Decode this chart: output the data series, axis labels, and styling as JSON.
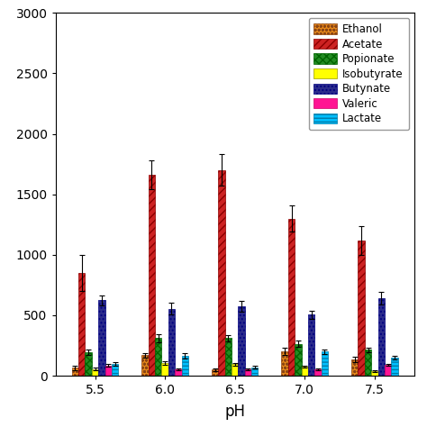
{
  "ph_labels": [
    "5.5",
    "6.0",
    "6.5",
    "7.0",
    "7.5"
  ],
  "series": [
    {
      "name": "Ethanol",
      "values": [
        65,
        170,
        50,
        205,
        135
      ],
      "errors": [
        20,
        20,
        10,
        30,
        20
      ],
      "color": "#E8891A",
      "hatch": "oooo",
      "edgecolor": "#8B4513"
    },
    {
      "name": "Acetate",
      "values": [
        850,
        1660,
        1700,
        1300,
        1120
      ],
      "errors": [
        150,
        120,
        130,
        110,
        120
      ],
      "color": "#CC2222",
      "hatch": "////",
      "edgecolor": "#8B0000"
    },
    {
      "name": "Popionate",
      "values": [
        195,
        310,
        310,
        265,
        215
      ],
      "errors": [
        25,
        30,
        25,
        25,
        20
      ],
      "color": "#228B22",
      "hatch": "xxxx",
      "edgecolor": "#006400"
    },
    {
      "name": "Isobutyrate",
      "values": [
        55,
        105,
        95,
        75,
        40
      ],
      "errors": [
        10,
        15,
        12,
        10,
        8
      ],
      "color": "#FFFF00",
      "hatch": "",
      "edgecolor": "#999900"
    },
    {
      "name": "Butynate",
      "values": [
        625,
        555,
        575,
        505,
        640
      ],
      "errors": [
        40,
        50,
        45,
        35,
        50
      ],
      "color": "#2B2B8B",
      "hatch": "....",
      "edgecolor": "#000080"
    },
    {
      "name": "Valeric",
      "values": [
        85,
        55,
        55,
        50,
        90
      ],
      "errors": [
        10,
        8,
        8,
        8,
        10
      ],
      "color": "#FF1493",
      "hatch": "",
      "edgecolor": "#CC0066"
    },
    {
      "name": "Lactate",
      "values": [
        100,
        165,
        70,
        200,
        150
      ],
      "errors": [
        15,
        20,
        12,
        20,
        18
      ],
      "color": "#00BFFF",
      "hatch": "----",
      "edgecolor": "#007BA7"
    }
  ],
  "xlabel": "pH",
  "ylabel": "",
  "ylim": [
    0,
    3000
  ],
  "yticks": [
    0,
    500,
    1000,
    1500,
    2000,
    2500,
    3000
  ],
  "bar_width": 0.095,
  "background_color": "#ffffff",
  "legend_fontsize": 8.5,
  "axis_fontsize": 12,
  "tick_fontsize": 10
}
